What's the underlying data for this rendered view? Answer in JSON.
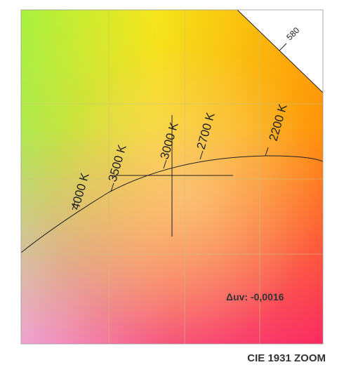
{
  "chart_data": {
    "type": "scatter",
    "title": "CIE 1931 ZOOM",
    "annotation": "Δuv: -0,0016",
    "grid": true,
    "planckian_locus": [
      {
        "label": "4000 K"
      },
      {
        "label": "3500 K"
      },
      {
        "label": "3000 K"
      },
      {
        "label": "2700 K"
      },
      {
        "label": "2200 K"
      }
    ],
    "spectral_locus_label": "580",
    "measurement_marker": "crosshair"
  },
  "colors": {
    "corner_top_left": "#a9f23e",
    "corner_top_right": "#ffa500",
    "corner_bottom_left": "#f1a3d0",
    "corner_bottom_right": "#fb2d6a",
    "locus_line": "#222222",
    "grid_line": "#c9c27a"
  }
}
